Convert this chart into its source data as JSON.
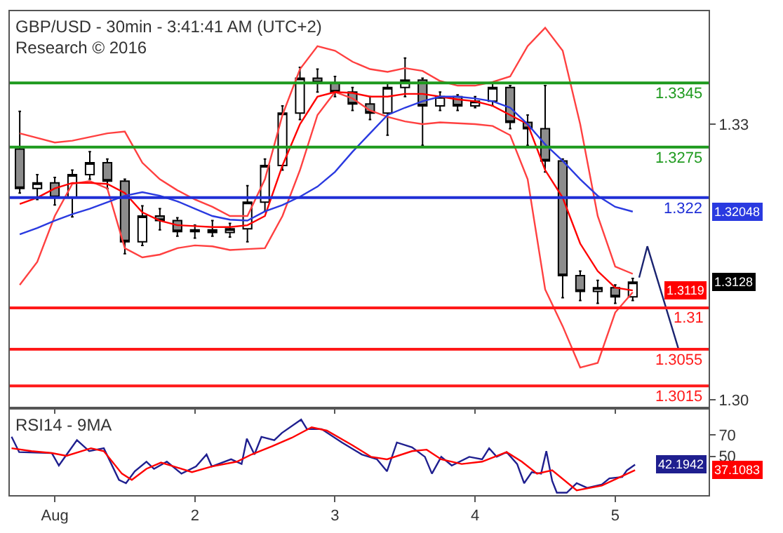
{
  "chart_data": [
    {
      "type": "candlestick",
      "title": "GBP/USD - 30min - 3:41:41 AM (UTC+2)",
      "subtitle": "Research © 2016",
      "x": [
        "2016-07-31T18:00",
        "2016-07-31T21:00",
        "2016-08-01T00:00",
        "2016-08-01T03:00",
        "2016-08-01T06:00",
        "2016-08-01T09:00",
        "2016-08-01T12:00",
        "2016-08-01T15:00",
        "2016-08-01T18:00",
        "2016-08-01T21:00",
        "2016-08-02T00:00",
        "2016-08-02T03:00",
        "2016-08-02T06:00",
        "2016-08-02T09:00",
        "2016-08-02T12:00",
        "2016-08-02T15:00",
        "2016-08-02T18:00",
        "2016-08-02T21:00",
        "2016-08-03T00:00",
        "2016-08-03T03:00",
        "2016-08-03T06:00",
        "2016-08-03T09:00",
        "2016-08-03T12:00",
        "2016-08-03T15:00",
        "2016-08-03T18:00",
        "2016-08-03T21:00",
        "2016-08-04T00:00",
        "2016-08-04T03:00",
        "2016-08-04T06:00",
        "2016-08-04T09:00",
        "2016-08-04T12:00",
        "2016-08-04T15:00",
        "2016-08-04T18:00",
        "2016-08-04T21:00",
        "2016-08-05T00:00",
        "2016-08-05T03:00"
      ],
      "series": [
        {
          "type": "line",
          "color": "#ff4040",
          "values": [
            1.329,
            1.3285,
            1.328,
            1.3282,
            1.3286,
            1.329,
            1.3292,
            1.3258,
            1.324,
            1.3228,
            1.3218,
            1.321,
            1.32,
            1.32,
            1.324,
            1.331,
            1.336,
            1.3385,
            1.338,
            1.3368,
            1.336,
            1.3357,
            1.3361,
            1.3358,
            1.3347,
            1.3342,
            1.3342,
            1.3346,
            1.3352,
            1.3385,
            1.3405,
            1.338,
            1.33,
            1.32,
            1.3145,
            1.3137
          ]
        },
        {
          "type": "line",
          "color": "#ff4040",
          "values": [
            1.3125,
            1.315,
            1.32,
            1.3235,
            1.3238,
            1.323,
            1.3165,
            1.3155,
            1.3158,
            1.3165,
            1.3168,
            1.3167,
            1.3163,
            1.3164,
            1.3165,
            1.32,
            1.325,
            1.331,
            1.3335,
            1.3328,
            1.3315,
            1.3308,
            1.3303,
            1.33,
            1.3302,
            1.3301,
            1.33,
            1.3298,
            1.3288,
            1.324,
            1.312,
            1.308,
            1.3035,
            1.304,
            1.3095,
            1.3117
          ]
        },
        {
          "type": "line",
          "color": "#ff0000",
          "values": [
            1.3213,
            1.322,
            1.323,
            1.3236,
            1.3236,
            1.3235,
            1.3225,
            1.3204,
            1.3195,
            1.319,
            1.3189,
            1.3188,
            1.3188,
            1.319,
            1.32,
            1.3255,
            1.33,
            1.333,
            1.3335,
            1.3334,
            1.333,
            1.333,
            1.3333,
            1.3333,
            1.333,
            1.3327,
            1.3325,
            1.332,
            1.331,
            1.33,
            1.325,
            1.322,
            1.317,
            1.314,
            1.3122,
            1.3119
          ]
        },
        {
          "type": "line",
          "color": "#2a3ae0",
          "values": [
            1.318,
            1.3187,
            1.3195,
            1.3202,
            1.3208,
            1.3215,
            1.3222,
            1.3226,
            1.3222,
            1.3216,
            1.3208,
            1.32,
            1.3196,
            1.3195,
            1.3205,
            1.3212,
            1.3221,
            1.3232,
            1.3248,
            1.327,
            1.329,
            1.331,
            1.3318,
            1.3325,
            1.333,
            1.333,
            1.3328,
            1.3325,
            1.3318,
            1.33,
            1.3278,
            1.326,
            1.324,
            1.3222,
            1.321,
            1.32048
          ]
        },
        {
          "type": "candlestick",
          "color": "#000000",
          "ohlc": [
            [
              1.3273,
              1.3314,
              1.3225,
              1.323
            ],
            [
              1.323,
              1.3245,
              1.3218,
              1.3236
            ],
            [
              1.3236,
              1.3242,
              1.3212,
              1.322
            ],
            [
              1.322,
              1.325,
              1.3199,
              1.3245
            ],
            [
              1.3245,
              1.327,
              1.324,
              1.3258
            ],
            [
              1.3258,
              1.3262,
              1.323,
              1.3238
            ],
            [
              1.3238,
              1.324,
              1.3159,
              1.3172
            ],
            [
              1.3172,
              1.3211,
              1.3168,
              1.32
            ],
            [
              1.32,
              1.3208,
              1.3185,
              1.3195
            ],
            [
              1.3195,
              1.3198,
              1.3178,
              1.3183
            ],
            [
              1.3183,
              1.319,
              1.3176,
              1.3185
            ],
            [
              1.3185,
              1.3195,
              1.3178,
              1.3182
            ],
            [
              1.3182,
              1.3192,
              1.3177,
              1.3186
            ],
            [
              1.3186,
              1.3233,
              1.3172,
              1.3215
            ],
            [
              1.3215,
              1.3262,
              1.3205,
              1.3255
            ],
            [
              1.3255,
              1.332,
              1.325,
              1.3312
            ],
            [
              1.3312,
              1.3362,
              1.3305,
              1.335
            ],
            [
              1.335,
              1.336,
              1.3335,
              1.3345
            ],
            [
              1.3345,
              1.3352,
              1.333,
              1.3335
            ],
            [
              1.3335,
              1.334,
              1.3315,
              1.3322
            ],
            [
              1.3322,
              1.333,
              1.3305,
              1.3312
            ],
            [
              1.3312,
              1.3345,
              1.3288,
              1.334
            ],
            [
              1.334,
              1.3372,
              1.333,
              1.3348
            ],
            [
              1.3348,
              1.335,
              1.3277,
              1.332
            ],
            [
              1.332,
              1.3335,
              1.3315,
              1.333
            ],
            [
              1.333,
              1.3332,
              1.3315,
              1.332
            ],
            [
              1.332,
              1.333,
              1.3318,
              1.3325
            ],
            [
              1.3325,
              1.3345,
              1.332,
              1.334
            ],
            [
              1.334,
              1.3342,
              1.3295,
              1.3302
            ],
            [
              1.3302,
              1.331,
              1.3277,
              1.3295
            ],
            [
              1.3295,
              1.3342,
              1.3248,
              1.326
            ],
            [
              1.326,
              1.3262,
              1.3111,
              1.3135
            ],
            [
              1.3135,
              1.314,
              1.3108,
              1.3118
            ],
            [
              1.3118,
              1.313,
              1.3105,
              1.3122
            ],
            [
              1.3122,
              1.3125,
              1.3105,
              1.3112
            ],
            [
              1.3112,
              1.3132,
              1.3108,
              1.3128
            ]
          ]
        },
        {
          "type": "line",
          "color": "#1a2370",
          "x": [
            "2016-08-05T04:06",
            "2016-08-05T05:30",
            "2016-08-05T10:48"
          ],
          "values": [
            1.3133,
            1.3167,
            1.3056
          ]
        }
      ],
      "annotations": [
        {
          "text": "1.32048",
          "y": 1.32048
        },
        {
          "text": "1.3128",
          "y": 1.3128
        },
        {
          "text": "1.3119",
          "y": 1.3119
        }
      ],
      "ref_lines": [
        {
          "axis": "y",
          "value": 1.3345,
          "label": "1.3345",
          "color": "#1e9a1e"
        },
        {
          "axis": "y",
          "value": 1.3275,
          "label": "1.3275",
          "color": "#1e9a1e"
        },
        {
          "axis": "y",
          "value": 1.322,
          "label": "1.322",
          "color": "#1f2fd6"
        },
        {
          "axis": "y",
          "value": 1.31,
          "label": "1.31",
          "color": "#ff1a1a"
        },
        {
          "axis": "y",
          "value": 1.3055,
          "label": "1.3055",
          "color": "#ff1a1a"
        },
        {
          "axis": "y",
          "value": 1.3015,
          "label": "1.3015",
          "color": "#ff1a1a"
        }
      ],
      "xlim": [
        "2016-07-31T16:18",
        "2016-08-05T16:00"
      ],
      "xticks": [
        {
          "value": "2016-08-01",
          "label": null
        },
        {
          "value": "2016-08-02",
          "label": null
        },
        {
          "value": "2016-08-03",
          "label": null
        },
        {
          "value": "2016-08-04",
          "label": null
        },
        {
          "value": "2016-08-05",
          "label": null
        }
      ],
      "ylim": [
        1.2992,
        1.3423
      ],
      "yticks": [
        1.33,
        {
          "value": 1.3,
          "label": "1.30"
        }
      ],
      "tick_labels": "y",
      "grid": false
    },
    {
      "type": "line",
      "title": "RSI14 - 9MA",
      "series": [
        {
          "color": "#1f1f8f",
          "x": [
            "2016-07-31T16:36",
            "2016-07-31T17:54",
            "2016-07-31T23:30",
            "2016-08-01T00:42",
            "2016-08-01T03:48",
            "2016-08-01T05:54",
            "2016-08-01T08:24",
            "2016-08-01T11:00",
            "2016-08-01T12:12",
            "2016-08-01T13:42",
            "2016-08-01T15:42",
            "2016-08-01T17:00",
            "2016-08-01T19:12",
            "2016-08-01T21:42",
            "2016-08-02T00:12",
            "2016-08-02T02:00",
            "2016-08-02T02:54",
            "2016-08-02T06:12",
            "2016-08-02T08:00",
            "2016-08-02T08:54",
            "2016-08-02T10:12",
            "2016-08-02T11:24",
            "2016-08-02T13:36",
            "2016-08-02T14:54",
            "2016-08-02T18:12",
            "2016-08-02T19:12",
            "2016-08-02T21:42",
            "2016-08-03T01:12",
            "2016-08-03T04:36",
            "2016-08-03T07:12",
            "2016-08-03T08:54",
            "2016-08-03T10:36",
            "2016-08-03T13:12",
            "2016-08-03T15:24",
            "2016-08-03T16:36",
            "2016-08-03T18:12",
            "2016-08-03T20:00",
            "2016-08-03T23:00",
            "2016-08-04T01:12",
            "2016-08-04T02:24",
            "2016-08-04T03:42",
            "2016-08-04T05:24",
            "2016-08-04T07:12",
            "2016-08-04T08:24",
            "2016-08-04T09:42",
            "2016-08-04T11:18",
            "2016-08-04T12:12",
            "2016-08-04T13:12",
            "2016-08-04T14:00",
            "2016-08-04T15:42",
            "2016-08-04T17:24",
            "2016-08-04T19:12",
            "2016-08-04T21:42",
            "2016-08-04T23:00",
            "2016-08-05T01:12",
            "2016-08-05T02:00",
            "2016-08-05T03:24"
          ],
          "values": [
            68.2,
            53.9,
            53,
            41.4,
            65.1,
            54.8,
            57.5,
            28,
            24.9,
            36,
            45,
            38.3,
            45,
            33.8,
            40.5,
            51.7,
            40.5,
            47.2,
            42.8,
            66.4,
            51.7,
            68.2,
            65.1,
            71.8,
            84.3,
            75.4,
            75.4,
            62.9,
            51.7,
            47.2,
            36,
            62.9,
            58.4,
            49.5,
            33.8,
            49.5,
            41.4,
            49.5,
            47.2,
            57.5,
            49.5,
            53.9,
            42.8,
            24.9,
            35.2,
            33.8,
            54.8,
            27.1,
            16,
            16,
            24.9,
            20.5,
            23.6,
            29.4,
            30.7,
            36.9,
            42.1942
          ]
        },
        {
          "color": "#ff0000",
          "x": [
            "2016-07-31T16:36",
            "2016-07-31T20:00",
            "2016-07-31T23:30",
            "2016-08-01T02:00",
            "2016-08-01T06:12",
            "2016-08-01T08:24",
            "2016-08-01T11:30",
            "2016-08-01T13:12",
            "2016-08-01T15:42",
            "2016-08-01T18:12",
            "2016-08-01T20:24",
            "2016-08-01T23:30",
            "2016-08-02T02:54",
            "2016-08-02T07:12",
            "2016-08-02T09:42",
            "2016-08-02T13:12",
            "2016-08-02T16:36",
            "2016-08-02T20:00",
            "2016-08-02T22:36",
            "2016-08-03T02:54",
            "2016-08-03T06:12",
            "2016-08-03T08:54",
            "2016-08-03T13:12",
            "2016-08-03T15:42",
            "2016-08-03T18:12",
            "2016-08-03T21:42",
            "2016-08-04T01:12",
            "2016-08-04T05:24",
            "2016-08-04T08:00",
            "2016-08-04T10:36",
            "2016-08-04T13:12",
            "2016-08-04T17:24",
            "2016-08-04T21:42",
            "2016-08-05T03:24"
          ],
          "values": [
            57.5,
            54.8,
            53,
            50.4,
            57.5,
            54.8,
            33.8,
            28,
            38.3,
            44.1,
            40.5,
            35.2,
            40.5,
            45,
            51.7,
            59.3,
            67.3,
            77.1,
            74,
            60.6,
            49.5,
            47.2,
            54.8,
            56.2,
            47.2,
            42.8,
            45,
            53.9,
            45,
            33.8,
            37,
            18.2,
            22.7,
            37.1083
          ]
        }
      ],
      "annotations": [
        {
          "text": "42.1942",
          "y": 42.1942
        },
        {
          "text": "37.1083",
          "y": 37.1083
        }
      ],
      "xlim": [
        "2016-07-31T16:18",
        "2016-08-05T16:00"
      ],
      "xticks": [
        {
          "value": "2016-08-01",
          "label": "Aug"
        },
        {
          "value": "2016-08-02",
          "label": "2"
        },
        {
          "value": "2016-08-03",
          "label": "3"
        },
        {
          "value": "2016-08-04",
          "label": "4"
        },
        {
          "value": "2016-08-05",
          "label": "5"
        }
      ],
      "ylim": [
        13.75,
        93.75
      ],
      "yticks": [
        70,
        50
      ],
      "grid": false
    }
  ]
}
